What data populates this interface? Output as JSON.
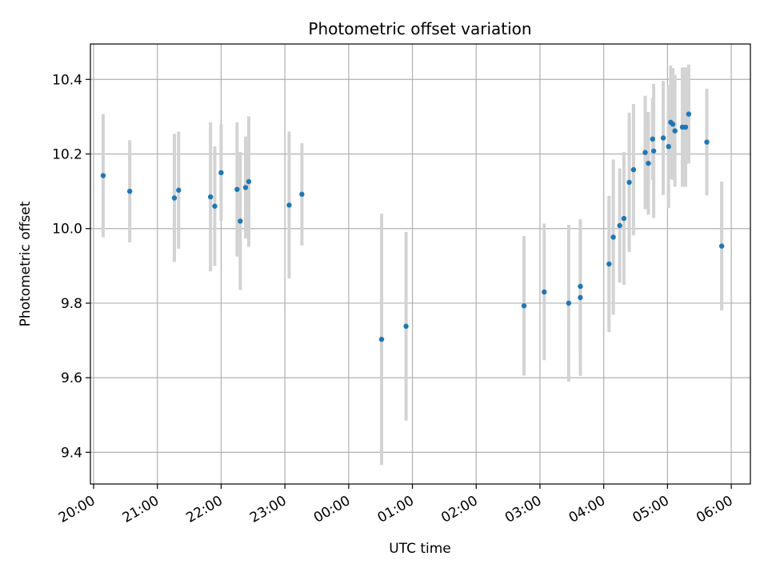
{
  "chart_data": {
    "type": "scatter",
    "title": "Photometric offset variation",
    "xlabel": "UTC time",
    "ylabel": "Photometric offset",
    "grid": true,
    "x_tick_labels": [
      "20:00",
      "21:00",
      "22:00",
      "23:00",
      "00:00",
      "01:00",
      "02:00",
      "03:00",
      "04:00",
      "05:00",
      "06:00"
    ],
    "y_ticks": [
      9.4,
      9.6,
      9.8,
      10.0,
      10.2,
      10.4
    ],
    "y_tick_labels": [
      "9.4",
      "9.6",
      "9.8",
      "10.0",
      "10.2",
      "10.4"
    ],
    "xlim_hours": [
      19.95,
      30.3
    ],
    "ylim": [
      9.315,
      10.495
    ],
    "marker_color": "#1f77b4",
    "errorbar_color": "#d3d3d3",
    "points": [
      {
        "t": "20:09",
        "y": 10.142,
        "err": 0.165
      },
      {
        "t": "20:34",
        "y": 10.1,
        "err": 0.137
      },
      {
        "t": "21:16",
        "y": 10.082,
        "err": 0.172
      },
      {
        "t": "21:20",
        "y": 10.103,
        "err": 0.157
      },
      {
        "t": "21:50",
        "y": 10.085,
        "err": 0.2
      },
      {
        "t": "21:54",
        "y": 10.06,
        "err": 0.16
      },
      {
        "t": "22:00",
        "y": 10.15,
        "err": 0.13
      },
      {
        "t": "22:15",
        "y": 10.105,
        "err": 0.18
      },
      {
        "t": "22:18",
        "y": 10.02,
        "err": 0.185
      },
      {
        "t": "22:23",
        "y": 10.11,
        "err": 0.137
      },
      {
        "t": "22:26",
        "y": 10.126,
        "err": 0.175
      },
      {
        "t": "23:04",
        "y": 10.063,
        "err": 0.197
      },
      {
        "t": "23:16",
        "y": 10.092,
        "err": 0.137
      },
      {
        "t": "00:31",
        "y": 9.703,
        "err": 0.337
      },
      {
        "t": "00:54",
        "y": 9.738,
        "err": 0.253
      },
      {
        "t": "02:45",
        "y": 9.793,
        "err": 0.187
      },
      {
        "t": "03:04",
        "y": 9.83,
        "err": 0.183
      },
      {
        "t": "03:27",
        "y": 9.8,
        "err": 0.21
      },
      {
        "t": "03:38",
        "y": 9.845,
        "err": 0.175
      },
      {
        "t": "03:38",
        "y": 9.815,
        "err": 0.21
      },
      {
        "t": "04:05",
        "y": 9.905,
        "err": 0.183
      },
      {
        "t": "04:09",
        "y": 9.977,
        "err": 0.208
      },
      {
        "t": "04:15",
        "y": 10.008,
        "err": 0.153
      },
      {
        "t": "04:19",
        "y": 10.027,
        "err": 0.178
      },
      {
        "t": "04:24",
        "y": 10.124,
        "err": 0.187
      },
      {
        "t": "04:28",
        "y": 10.158,
        "err": 0.176
      },
      {
        "t": "04:39",
        "y": 10.204,
        "err": 0.152
      },
      {
        "t": "04:42",
        "y": 10.175,
        "err": 0.138
      },
      {
        "t": "04:46",
        "y": 10.24,
        "err": 0.11
      },
      {
        "t": "04:47",
        "y": 10.208,
        "err": 0.18
      },
      {
        "t": "04:56",
        "y": 10.243,
        "err": 0.153
      },
      {
        "t": "05:01",
        "y": 10.22,
        "err": 0.165
      },
      {
        "t": "05:03",
        "y": 10.285,
        "err": 0.152
      },
      {
        "t": "05:05",
        "y": 10.28,
        "err": 0.15
      },
      {
        "t": "05:07",
        "y": 10.262,
        "err": 0.15
      },
      {
        "t": "05:14",
        "y": 10.272,
        "err": 0.16
      },
      {
        "t": "05:17",
        "y": 10.272,
        "err": 0.16
      },
      {
        "t": "05:20",
        "y": 10.307,
        "err": 0.133
      },
      {
        "t": "05:37",
        "y": 10.232,
        "err": 0.143
      },
      {
        "t": "05:51",
        "y": 9.953,
        "err": 0.173
      }
    ]
  }
}
